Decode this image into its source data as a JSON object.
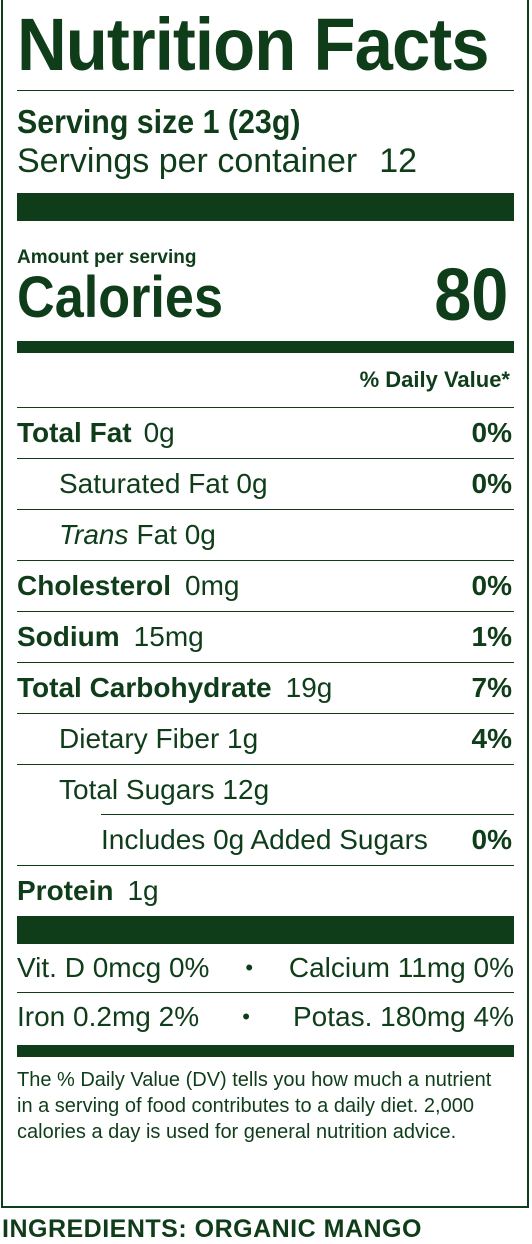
{
  "title": "Nutrition Facts",
  "serving": {
    "size_label": "Serving size 1 (23g)",
    "per_container_label": "Servings per container",
    "per_container_value": "12"
  },
  "calories": {
    "amount_label": "Amount per serving",
    "label": "Calories",
    "value": "80"
  },
  "dv_header": "% Daily Value*",
  "nutrients": {
    "total_fat": {
      "name": "Total Fat",
      "amount": "0g",
      "dv": "0%"
    },
    "saturated_fat": {
      "name": "Saturated Fat 0g",
      "dv": "0%"
    },
    "trans_fat": {
      "name_italic": "Trans",
      "name_rest": "Fat 0g"
    },
    "cholesterol": {
      "name": "Cholesterol",
      "amount": "0mg",
      "dv": "0%"
    },
    "sodium": {
      "name": "Sodium",
      "amount": "15mg",
      "dv": "1%"
    },
    "total_carb": {
      "name": "Total Carbohydrate",
      "amount": "19g",
      "dv": "7%"
    },
    "fiber": {
      "name": "Dietary Fiber 1g",
      "dv": "4%"
    },
    "total_sugars": {
      "name": "Total Sugars 12g"
    },
    "added_sugars": {
      "name": "Includes 0g Added Sugars",
      "dv": "0%"
    },
    "protein": {
      "name": "Protein",
      "amount": "1g"
    }
  },
  "vitamins": {
    "vit_d": "Vit. D 0mcg 0%",
    "calcium": "Calcium 11mg 0%",
    "iron": "Iron 0.2mg 2%",
    "potassium": "Potas. 180mg 4%",
    "separator": "•"
  },
  "footnote": "The % Daily Value (DV) tells you how much a nutrient in a serving of food contributes to a daily diet. 2,000 calories a day is used for general nutrition advice.",
  "ingredients": "INGREDIENTS: ORGANIC MANGO"
}
